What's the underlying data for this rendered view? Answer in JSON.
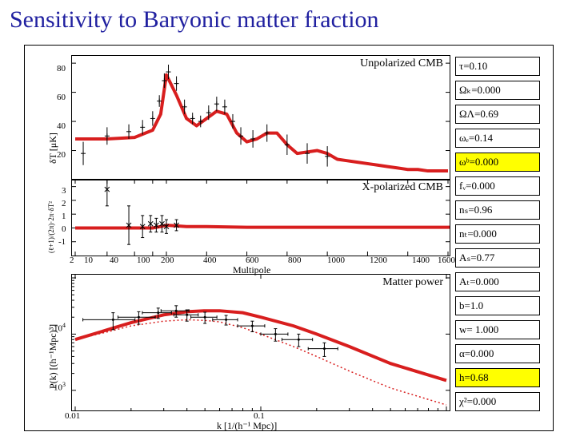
{
  "title": "Sensitivity to Baryonic matter fraction",
  "title_color": "#2020a0",
  "title_fontsize": 30,
  "background_color": "#ffffff",
  "figure": {
    "plot1": {
      "type": "line+scatter",
      "title": "Unpolarized CMB",
      "ylabel": "δT [μK]",
      "ylim": [
        0,
        80
      ],
      "yticks": [
        20,
        40,
        60,
        80
      ],
      "xlim": [
        2,
        1600
      ],
      "line_color": "#d81e1e",
      "line_width": 4,
      "data_marker": "+",
      "data_color": "#000000",
      "curve": [
        [
          2,
          28
        ],
        [
          10,
          28
        ],
        [
          40,
          29
        ],
        [
          100,
          34
        ],
        [
          150,
          45
        ],
        [
          200,
          72
        ],
        [
          250,
          58
        ],
        [
          300,
          42
        ],
        [
          350,
          37
        ],
        [
          400,
          42
        ],
        [
          450,
          47
        ],
        [
          500,
          45
        ],
        [
          550,
          32
        ],
        [
          600,
          26
        ],
        [
          650,
          28
        ],
        [
          700,
          32
        ],
        [
          750,
          32
        ],
        [
          800,
          24
        ],
        [
          850,
          18
        ],
        [
          900,
          19
        ],
        [
          950,
          20
        ],
        [
          1000,
          18
        ],
        [
          1050,
          14
        ],
        [
          1100,
          13
        ],
        [
          1150,
          12
        ],
        [
          1200,
          11
        ],
        [
          1250,
          10
        ],
        [
          1300,
          9
        ],
        [
          1350,
          8
        ],
        [
          1400,
          7
        ],
        [
          1450,
          7
        ],
        [
          1500,
          6
        ],
        [
          1600,
          6
        ]
      ],
      "points": [
        [
          3,
          18,
          8
        ],
        [
          10,
          30,
          6
        ],
        [
          30,
          33,
          5
        ],
        [
          60,
          36,
          5
        ],
        [
          100,
          42,
          5
        ],
        [
          140,
          54,
          4
        ],
        [
          180,
          68,
          5
        ],
        [
          210,
          74,
          5
        ],
        [
          250,
          66,
          5
        ],
        [
          290,
          50,
          5
        ],
        [
          330,
          42,
          4
        ],
        [
          370,
          40,
          4
        ],
        [
          410,
          46,
          5
        ],
        [
          450,
          52,
          5
        ],
        [
          490,
          50,
          5
        ],
        [
          530,
          40,
          5
        ],
        [
          570,
          30,
          6
        ],
        [
          630,
          28,
          6
        ],
        [
          700,
          32,
          6
        ],
        [
          800,
          24,
          7
        ],
        [
          900,
          18,
          7
        ],
        [
          1000,
          16,
          7
        ]
      ]
    },
    "plot2": {
      "type": "line+scatter",
      "title": "X-polarized CMB",
      "ylabel": "(ℓ+1)/(2π)·2π·δT²",
      "ylim": [
        -2,
        3
      ],
      "yticks": [
        -1,
        0,
        1,
        2,
        3
      ],
      "xlim": [
        2,
        1600
      ],
      "xticks": [
        2,
        10,
        40,
        100,
        200,
        400,
        600,
        800,
        1000,
        1200,
        1400,
        1600
      ],
      "xlabel": "Multipole",
      "line_color": "#d81e1e",
      "line_width": 4,
      "curve": [
        [
          2,
          0
        ],
        [
          10,
          0
        ],
        [
          40,
          0
        ],
        [
          100,
          0
        ],
        [
          150,
          0.1
        ],
        [
          200,
          0.2
        ],
        [
          300,
          0.1
        ],
        [
          400,
          0.1
        ],
        [
          600,
          0.05
        ],
        [
          1600,
          0.05
        ]
      ],
      "points": [
        [
          10,
          2.8,
          1.2
        ],
        [
          30,
          0.2,
          1.4
        ],
        [
          60,
          0.1,
          0.8
        ],
        [
          90,
          0.3,
          0.6
        ],
        [
          120,
          0.2,
          0.5
        ],
        [
          160,
          0.3,
          0.6
        ],
        [
          200,
          0.1,
          0.5
        ],
        [
          250,
          0.2,
          0.4
        ]
      ]
    },
    "plot3": {
      "type": "loglog",
      "title": "Matter power",
      "ylabel": "P(k) [(h⁻¹Mpc)³]",
      "xlabel": "k [1/(h⁻¹ Mpc)]",
      "ylim": [
        1000.0,
        100000.0
      ],
      "xlim": [
        0.01,
        1
      ],
      "xticks": [
        0.01,
        0.1
      ],
      "yticks": [
        1000.0,
        10000.0
      ],
      "line_color": "#d81e1e",
      "dotted_color": "#d81e1e",
      "curve1": [
        [
          0.01,
          8000
        ],
        [
          0.015,
          12000
        ],
        [
          0.02,
          16000
        ],
        [
          0.03,
          22000
        ],
        [
          0.04,
          25000
        ],
        [
          0.05,
          26000
        ],
        [
          0.06,
          26000
        ],
        [
          0.08,
          24000
        ],
        [
          0.1,
          20000
        ],
        [
          0.15,
          14000
        ],
        [
          0.2,
          10000
        ],
        [
          0.3,
          6000
        ],
        [
          0.5,
          3000
        ],
        [
          1.0,
          1500
        ]
      ],
      "curve2": [
        [
          0.01,
          8000
        ],
        [
          0.015,
          11000
        ],
        [
          0.02,
          14000
        ],
        [
          0.03,
          17000
        ],
        [
          0.04,
          18000
        ],
        [
          0.05,
          17500
        ],
        [
          0.06,
          16500
        ],
        [
          0.08,
          13000
        ],
        [
          0.1,
          10000
        ],
        [
          0.15,
          6000
        ],
        [
          0.2,
          4000
        ],
        [
          0.3,
          2200
        ],
        [
          0.5,
          1100
        ],
        [
          1.0,
          550
        ]
      ],
      "points": [
        [
          0.016,
          18000,
          6000,
          0.005
        ],
        [
          0.022,
          20000,
          5000,
          0.005
        ],
        [
          0.028,
          24000,
          5000,
          0.005
        ],
        [
          0.035,
          26000,
          6000,
          0.006
        ],
        [
          0.04,
          22000,
          5000,
          0.006
        ],
        [
          0.05,
          20000,
          4500,
          0.008
        ],
        [
          0.065,
          18000,
          3500,
          0.01
        ],
        [
          0.09,
          14000,
          3000,
          0.015
        ],
        [
          0.12,
          10000,
          2500,
          0.02
        ],
        [
          0.16,
          8000,
          2000,
          0.03
        ],
        [
          0.22,
          5500,
          1500,
          0.04
        ]
      ]
    },
    "params": [
      {
        "label": "τ=0.10",
        "highlight": false
      },
      {
        "label": "Ωₖ=0.000",
        "highlight": false
      },
      {
        "label": "ΩΛ=0.69",
        "highlight": false
      },
      {
        "label": "ωₑ=0.14",
        "highlight": false
      },
      {
        "label": "ωᵇ=0.000",
        "highlight": true
      },
      {
        "label": "fᵥ=0.000",
        "highlight": false
      },
      {
        "label": "nₛ=0.96",
        "highlight": false
      },
      {
        "label": "nₜ=0.000",
        "highlight": false
      },
      {
        "label": "Aₛ=0.77",
        "highlight": false
      },
      {
        "label": "Aₜ=0.000",
        "highlight": false
      },
      {
        "label": "b=1.0",
        "highlight": false
      },
      {
        "label": "w= 1.000",
        "highlight": false
      },
      {
        "label": "α=0.000",
        "highlight": false
      },
      {
        "label": "h=0.68",
        "highlight": true
      },
      {
        "label": "χ²=0.000",
        "highlight": false
      }
    ],
    "param_top": 14,
    "param_step": 30
  }
}
